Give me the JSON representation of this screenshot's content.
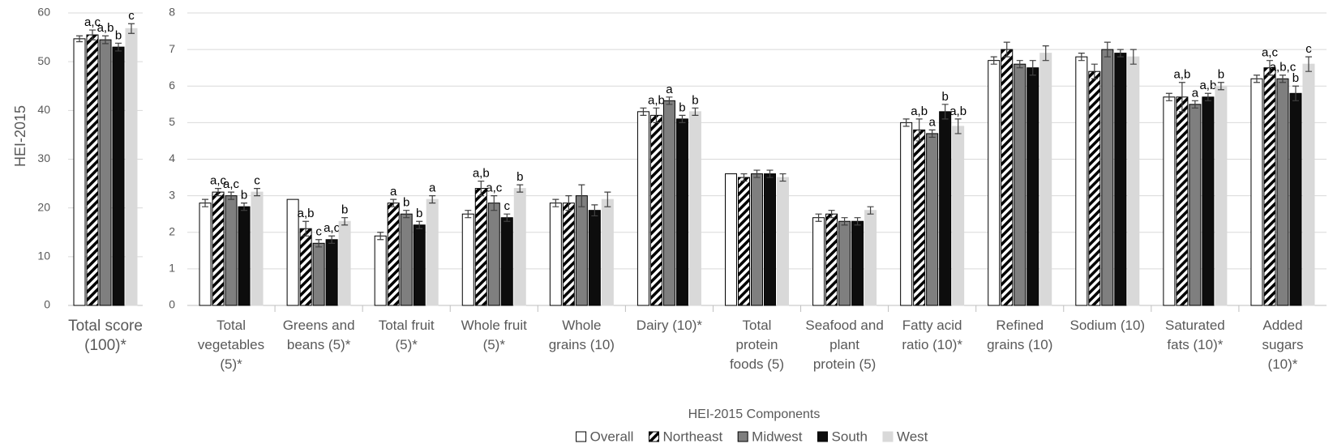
{
  "chart_data": [
    {
      "type": "bar",
      "ylabel": "HEI-2015",
      "categories": [
        "Total score (100)*"
      ],
      "ylim": [
        0,
        60
      ],
      "yticks": [
        0,
        10,
        20,
        30,
        40,
        50,
        60
      ],
      "grid": true,
      "series": [
        {
          "name": "Overall",
          "color": "#ffffff",
          "values": [
            54.7
          ],
          "errors": [
            0.6
          ],
          "labels": [
            null
          ]
        },
        {
          "name": "Northeast",
          "color": "#000000",
          "pattern": "hatch",
          "values": [
            55.5
          ],
          "errors": [
            1.0
          ],
          "labels": [
            "a,c"
          ]
        },
        {
          "name": "Midwest",
          "color": "#7f7f7f",
          "values": [
            54.5
          ],
          "errors": [
            0.8
          ],
          "labels": [
            "a,b"
          ]
        },
        {
          "name": "South",
          "color": "#0d0d0d",
          "values": [
            53.0
          ],
          "errors": [
            0.8
          ],
          "labels": [
            "b"
          ]
        },
        {
          "name": "West",
          "color": "#d9d9d9",
          "values": [
            56.8
          ],
          "errors": [
            1.0
          ],
          "labels": [
            "c"
          ]
        }
      ]
    },
    {
      "type": "bar",
      "xlabel": "HEI-2015 Components",
      "categories": [
        "Total vegetables (5)*",
        "Greens and beans (5)*",
        "Total fruit (5)*",
        "Whole fruit (5)*",
        "Whole grains (10)",
        "Dairy (10)*",
        "Total protein foods (5)",
        "Seafood and plant protein (5)",
        "Fatty acid ratio (10)*",
        "Refined grains (10)",
        "Sodium (10)",
        "Saturated fats (10)*",
        "Added sugars (10)*"
      ],
      "ylim": [
        0,
        8
      ],
      "yticks": [
        0,
        1,
        2,
        3,
        4,
        5,
        6,
        7,
        8
      ],
      "grid": true,
      "legend": "bottom",
      "series": [
        {
          "name": "Overall",
          "color": "#ffffff",
          "values": [
            2.8,
            2.9,
            1.9,
            2.5,
            2.8,
            5.3,
            3.6,
            2.4,
            5.0,
            6.7,
            6.8,
            5.7,
            6.2
          ],
          "errors": [
            0.1,
            null,
            0.1,
            0.1,
            0.1,
            0.1,
            null,
            0.1,
            0.1,
            0.1,
            0.1,
            0.1,
            0.1
          ],
          "labels": [
            null,
            null,
            null,
            null,
            null,
            null,
            null,
            null,
            null,
            null,
            null,
            null,
            null
          ]
        },
        {
          "name": "Northeast",
          "color": "#000000",
          "pattern": "hatch",
          "values": [
            3.1,
            2.1,
            2.8,
            3.2,
            2.8,
            5.2,
            3.5,
            2.5,
            4.8,
            7.0,
            6.4,
            5.7,
            6.5
          ],
          "errors": [
            0.1,
            0.2,
            0.1,
            0.2,
            0.2,
            0.2,
            0.1,
            0.1,
            0.3,
            0.2,
            0.2,
            0.4,
            0.2
          ],
          "labels": [
            "a,c",
            "a,b",
            "a",
            "a,b",
            null,
            "a,b",
            null,
            null,
            "a,b",
            null,
            null,
            "a,b",
            "a,c"
          ]
        },
        {
          "name": "Midwest",
          "color": "#7f7f7f",
          "values": [
            3.0,
            1.7,
            2.5,
            2.8,
            3.0,
            5.6,
            3.6,
            2.3,
            4.7,
            6.6,
            7.0,
            5.5,
            6.2
          ],
          "errors": [
            0.1,
            0.1,
            0.1,
            0.2,
            0.3,
            0.1,
            0.1,
            0.1,
            0.1,
            0.1,
            0.2,
            0.1,
            0.1
          ],
          "labels": [
            "a,c",
            "c",
            "b",
            "a,c",
            null,
            "a",
            null,
            null,
            "a",
            null,
            null,
            "a",
            "a,b,c"
          ]
        },
        {
          "name": "South",
          "color": "#0d0d0d",
          "values": [
            2.7,
            1.8,
            2.2,
            2.4,
            2.6,
            5.1,
            3.6,
            2.3,
            5.3,
            6.5,
            6.9,
            5.7,
            5.8
          ],
          "errors": [
            0.1,
            0.1,
            0.1,
            0.1,
            0.15,
            0.1,
            0.1,
            0.1,
            0.2,
            0.2,
            0.1,
            0.1,
            0.2
          ],
          "labels": [
            "b",
            "a,c",
            "b",
            "c",
            null,
            "b",
            null,
            null,
            "b",
            null,
            null,
            "a,b",
            "b"
          ]
        },
        {
          "name": "West",
          "color": "#d9d9d9",
          "values": [
            3.1,
            2.3,
            2.9,
            3.2,
            2.9,
            5.3,
            3.5,
            2.6,
            4.9,
            6.9,
            6.8,
            6.0,
            6.6
          ],
          "errors": [
            0.1,
            0.1,
            0.1,
            0.1,
            0.2,
            0.1,
            0.1,
            0.1,
            0.2,
            0.2,
            0.2,
            0.1,
            0.2
          ],
          "labels": [
            "c",
            "b",
            "a",
            "b",
            null,
            "b",
            null,
            null,
            "a,b",
            null,
            null,
            "b",
            "c"
          ]
        }
      ]
    }
  ]
}
